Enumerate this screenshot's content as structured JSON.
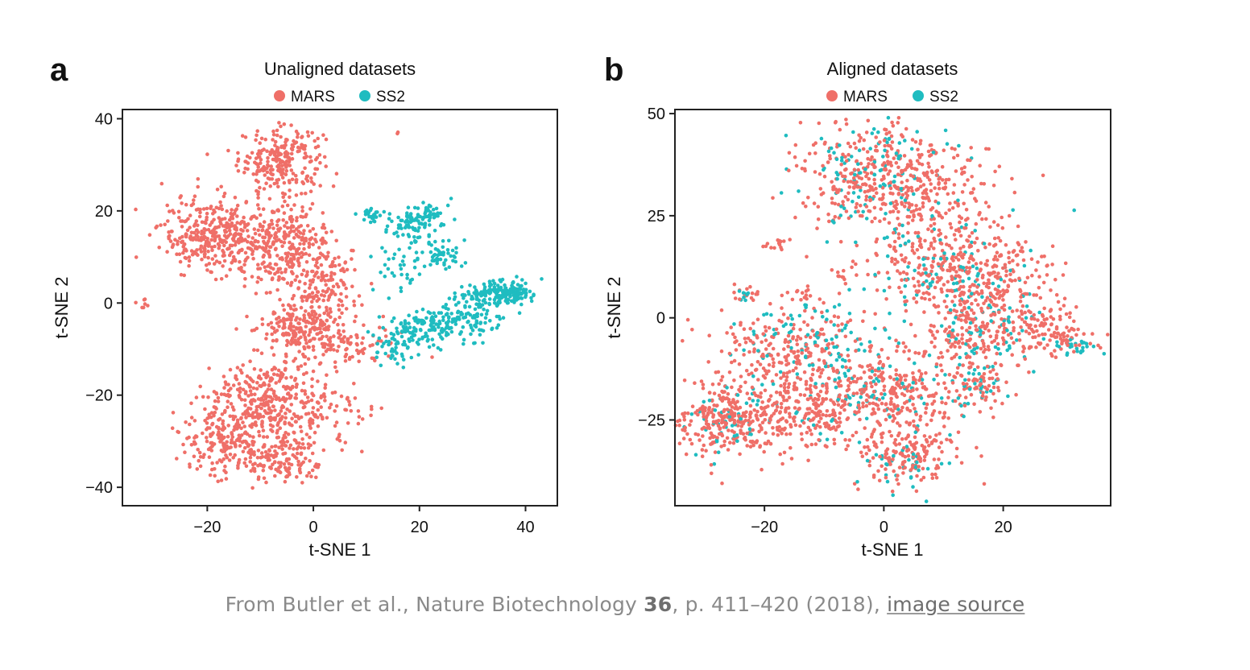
{
  "caption": {
    "prefix": "From Butler et al., Nature Biotechnology ",
    "volume": "36",
    "suffix": ", p. 411–420 (2018), ",
    "link_text": "image source"
  },
  "colors": {
    "MARS": "#ef6f68",
    "SS2": "#1fbcc0"
  },
  "chart_data": [
    {
      "type": "scatter",
      "panel_label": "a",
      "title": "Unaligned datasets",
      "xlabel": "t-SNE 1",
      "ylabel": "t-SNE 2",
      "xlim": [
        -36,
        46
      ],
      "ylim": [
        -44,
        42
      ],
      "xticks": [
        -20,
        0,
        20,
        40
      ],
      "xtick_labels": [
        "−20",
        "0",
        "20",
        "40"
      ],
      "yticks": [
        -40,
        -20,
        0,
        20,
        40
      ],
      "ytick_labels": [
        "−40",
        "−20",
        "0",
        "20",
        "40"
      ],
      "grid": false,
      "legend": {
        "placement": "top-center",
        "entries": [
          "MARS",
          "SS2"
        ]
      },
      "series": [
        {
          "name": "MARS",
          "color": "#ef6f68",
          "points": [],
          "clusters": [
            {
              "cx": -6,
              "cy": 31,
              "sx": 4,
              "sy": 3.5,
              "n": 240
            },
            {
              "cx": -19,
              "cy": 15,
              "sx": 5,
              "sy": 4,
              "n": 320
            },
            {
              "cx": -6,
              "cy": 12,
              "sx": 5,
              "sy": 5,
              "n": 320
            },
            {
              "cx": 3,
              "cy": 4,
              "sx": 3,
              "sy": 4,
              "n": 110
            },
            {
              "cx": -2,
              "cy": -5,
              "sx": 4,
              "sy": 3,
              "n": 220
            },
            {
              "cx": 8,
              "cy": -9,
              "sx": 4,
              "sy": 2,
              "n": 70
            },
            {
              "cx": -8,
              "cy": -22,
              "sx": 6,
              "sy": 5,
              "n": 420
            },
            {
              "cx": -17,
              "cy": -30,
              "sx": 4,
              "sy": 3.5,
              "n": 160
            },
            {
              "cx": -6,
              "cy": -34,
              "sx": 4,
              "sy": 2.5,
              "n": 130
            },
            {
              "cx": 6,
              "cy": -23,
              "sx": 2,
              "sy": 3,
              "n": 30
            },
            {
              "cx": -32,
              "cy": 0,
              "sx": 0.8,
              "sy": 0.7,
              "n": 7
            },
            {
              "cx": 16,
              "cy": 37,
              "sx": 0.3,
              "sy": 0.3,
              "n": 2
            }
          ]
        },
        {
          "name": "SS2",
          "color": "#1fbcc0",
          "points": [],
          "clusters": [
            {
              "cx": 11,
              "cy": 19,
              "sx": 1,
              "sy": 1,
              "n": 25
            },
            {
              "cx": 19,
              "cy": 17,
              "sx": 3,
              "sy": 2.5,
              "n": 90
            },
            {
              "cx": 22,
              "cy": 20,
              "sx": 1,
              "sy": 1,
              "n": 25
            },
            {
              "cx": 24,
              "cy": 10,
              "sx": 2,
              "sy": 1.5,
              "n": 50
            },
            {
              "cx": 16,
              "cy": 7,
              "sx": 3,
              "sy": 3,
              "n": 30
            },
            {
              "cx": 36,
              "cy": 2,
              "sx": 3.5,
              "sy": 1.3,
              "n": 170
            },
            {
              "cx": 28,
              "cy": -3,
              "sx": 4,
              "sy": 2.5,
              "n": 120
            },
            {
              "cx": 20,
              "cy": -6,
              "sx": 4,
              "sy": 2,
              "n": 120
            },
            {
              "cx": 15,
              "cy": -11,
              "sx": 2,
              "sy": 2,
              "n": 30
            }
          ]
        }
      ]
    },
    {
      "type": "scatter",
      "panel_label": "b",
      "title": "Aligned datasets",
      "xlabel": "t-SNE 1",
      "ylabel": "t-SNE 2",
      "xlim": [
        -35,
        38
      ],
      "ylim": [
        -46,
        51
      ],
      "xticks": [
        -20,
        0,
        20
      ],
      "xtick_labels": [
        "−20",
        "0",
        "20"
      ],
      "yticks": [
        -25,
        0,
        25,
        50
      ],
      "ytick_labels": [
        "−25",
        "0",
        "25",
        "50"
      ],
      "grid": false,
      "legend": {
        "placement": "top-center",
        "entries": [
          "MARS",
          "SS2"
        ]
      },
      "series": [
        {
          "name": "MARS",
          "color": "#ef6f68",
          "points": [],
          "clusters": [
            {
              "cx": -2,
              "cy": 35,
              "sx": 6,
              "sy": 7,
              "n": 280
            },
            {
              "cx": 7,
              "cy": 30,
              "sx": 6,
              "sy": 6,
              "n": 180
            },
            {
              "cx": 10,
              "cy": 12,
              "sx": 6,
              "sy": 7,
              "n": 260
            },
            {
              "cx": 20,
              "cy": 8,
              "sx": 5,
              "sy": 7,
              "n": 150
            },
            {
              "cx": 28,
              "cy": -3,
              "sx": 4,
              "sy": 3,
              "n": 110
            },
            {
              "cx": 15,
              "cy": -3,
              "sx": 5,
              "sy": 5,
              "n": 150
            },
            {
              "cx": 16,
              "cy": -17,
              "sx": 2.5,
              "sy": 3.5,
              "n": 60
            },
            {
              "cx": -15,
              "cy": -8,
              "sx": 8,
              "sy": 6,
              "n": 260
            },
            {
              "cx": -25,
              "cy": -25,
              "sx": 5,
              "sy": 4.5,
              "n": 300
            },
            {
              "cx": -11,
              "cy": -22,
              "sx": 6,
              "sy": 5,
              "n": 230
            },
            {
              "cx": 3,
              "cy": -18,
              "sx": 5,
              "sy": 5,
              "n": 200
            },
            {
              "cx": 4,
              "cy": -33,
              "sx": 4,
              "sy": 4,
              "n": 170
            },
            {
              "cx": -18,
              "cy": 18,
              "sx": 1,
              "sy": 0.7,
              "n": 15
            },
            {
              "cx": -23,
              "cy": 6,
              "sx": 1,
              "sy": 1,
              "n": 15
            },
            {
              "cx": -14,
              "cy": 6,
              "sx": 1.5,
              "sy": 1.5,
              "n": 15
            },
            {
              "cx": -7,
              "cy": 11,
              "sx": 1,
              "sy": 1.5,
              "n": 12
            }
          ]
        },
        {
          "name": "SS2",
          "color": "#1fbcc0",
          "points": [],
          "clusters": [
            {
              "cx": -1,
              "cy": 35,
              "sx": 6,
              "sy": 7,
              "n": 110
            },
            {
              "cx": 9,
              "cy": 12,
              "sx": 7,
              "sy": 8,
              "n": 80
            },
            {
              "cx": 17,
              "cy": -2,
              "sx": 6,
              "sy": 6,
              "n": 70
            },
            {
              "cx": 32,
              "cy": -7,
              "sx": 2,
              "sy": 1,
              "n": 25
            },
            {
              "cx": 15,
              "cy": -16,
              "sx": 2,
              "sy": 3,
              "n": 30
            },
            {
              "cx": -11,
              "cy": -5,
              "sx": 6,
              "sy": 5,
              "n": 90
            },
            {
              "cx": -26,
              "cy": -25,
              "sx": 4,
              "sy": 4,
              "n": 45
            },
            {
              "cx": -5,
              "cy": -20,
              "sx": 7,
              "sy": 5,
              "n": 80
            },
            {
              "cx": 5,
              "cy": -37,
              "sx": 3,
              "sy": 3,
              "n": 35
            },
            {
              "cx": -23,
              "cy": 6,
              "sx": 0.8,
              "sy": 0.8,
              "n": 8
            }
          ]
        }
      ]
    }
  ]
}
